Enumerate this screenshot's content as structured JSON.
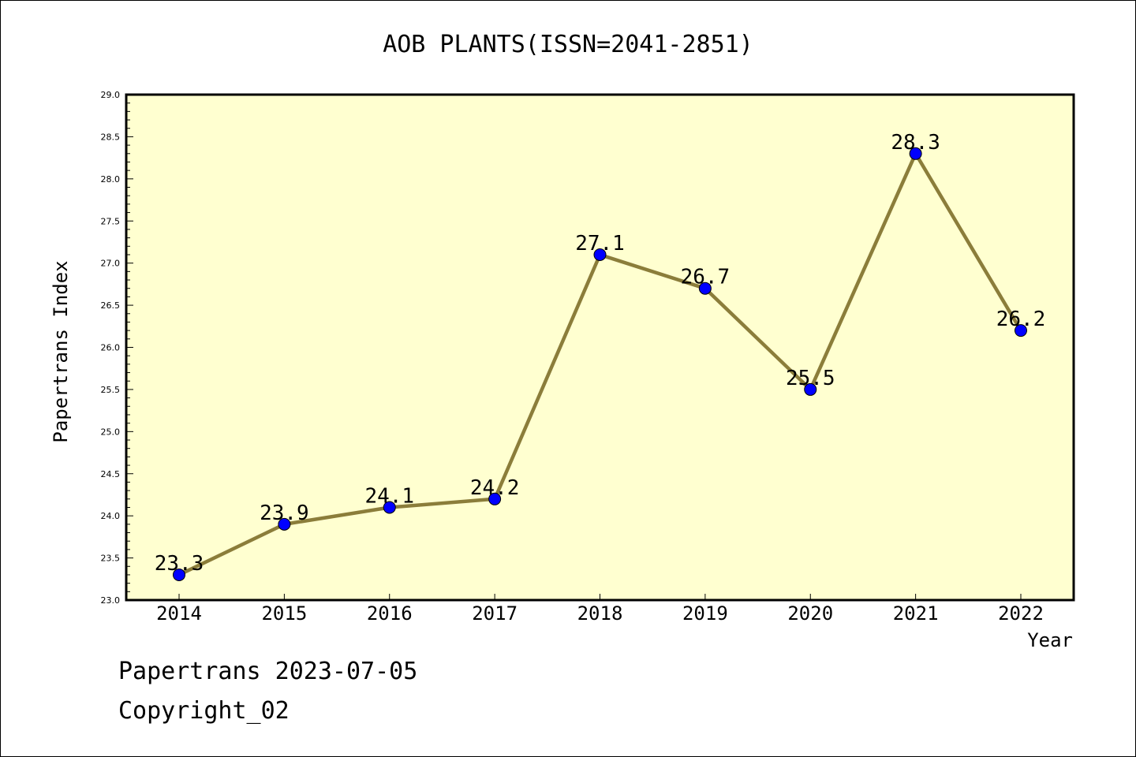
{
  "chart_data": {
    "type": "line",
    "title": "AOB PLANTS(ISSN=2041-2851)",
    "xlabel": "Year",
    "ylabel": "Papertrans Index",
    "categories": [
      "2014",
      "2015",
      "2016",
      "2017",
      "2018",
      "2019",
      "2020",
      "2021",
      "2022"
    ],
    "series": [
      {
        "values": [
          23.3,
          23.9,
          24.1,
          24.2,
          27.1,
          26.7,
          25.5,
          28.3,
          26.2
        ],
        "data_labels": [
          "23.3",
          "23.9",
          "24.1",
          "24.2",
          "27.1",
          "26.7",
          "25.5",
          "28.3",
          "26.2"
        ]
      }
    ],
    "ylim": [
      23.0,
      29.0
    ],
    "yticks": [
      "23.0",
      "23.5",
      "24.0",
      "24.5",
      "25.0",
      "25.5",
      "26.0",
      "26.5",
      "27.0",
      "27.5",
      "28.0",
      "28.5",
      "29.0"
    ],
    "grid": false,
    "colors": {
      "plot_background": "#FFFFD0",
      "line": "#8B7D3A",
      "marker": "#0000FF"
    }
  },
  "footer": {
    "line1": "Papertrans 2023-07-05",
    "line2": "Copyright_02"
  }
}
